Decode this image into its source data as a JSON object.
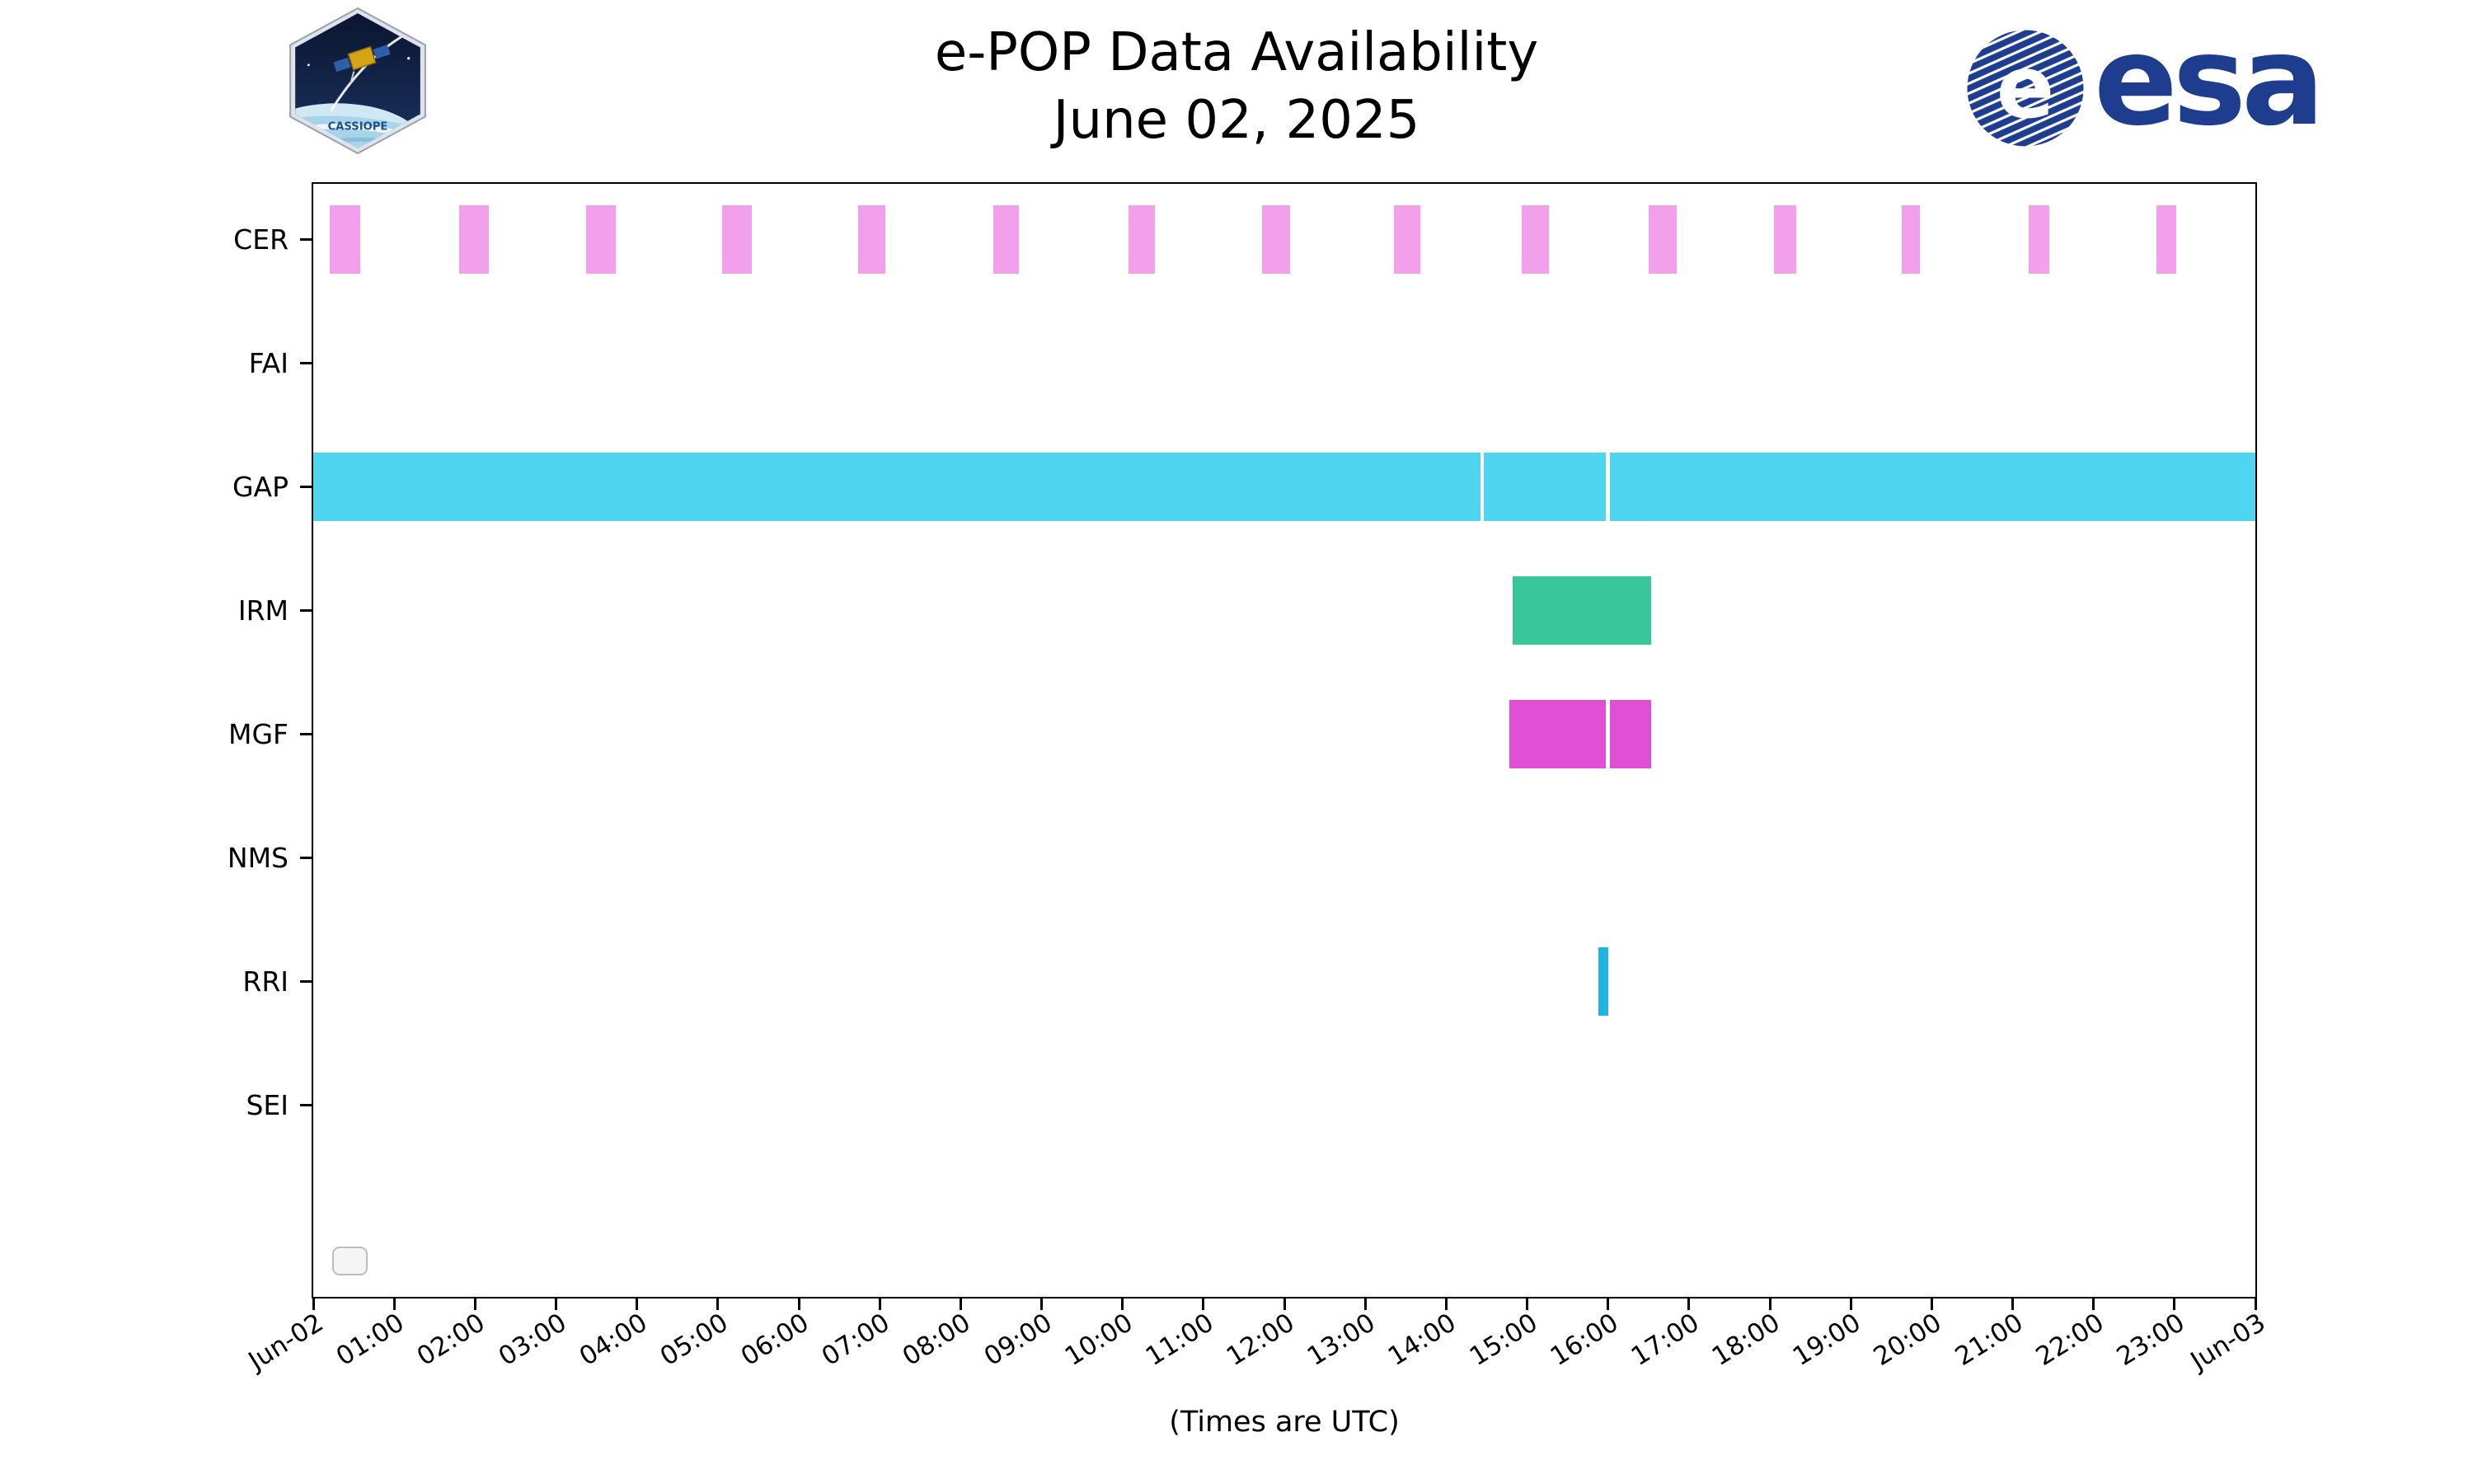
{
  "header": {
    "title_line1": "e-POP Data Availability",
    "title_line2": "June 02, 2025"
  },
  "logos": {
    "cassiope_text": "CASSIOPE",
    "esa_text": "esa",
    "esa_blue": "#1e3d8f",
    "cassiope_navy": "#0d1c3d"
  },
  "chart_data": {
    "type": "bar",
    "subtype": "availability-timeline",
    "title": "e-POP Data Availability June 02, 2025",
    "xlabel": "(Times are UTC)",
    "x_range_hours": [
      0,
      24
    ],
    "x_tick_interval_hours": 1,
    "x_tick_labels": [
      "Jun-02",
      "01:00",
      "02:00",
      "03:00",
      "04:00",
      "05:00",
      "06:00",
      "07:00",
      "08:00",
      "09:00",
      "10:00",
      "11:00",
      "12:00",
      "13:00",
      "14:00",
      "15:00",
      "16:00",
      "17:00",
      "18:00",
      "19:00",
      "20:00",
      "21:00",
      "22:00",
      "23:00",
      "Jun-03"
    ],
    "rows": [
      "CER",
      "FAI",
      "GAP",
      "IRM",
      "MGF",
      "NMS",
      "RRI",
      "SEI"
    ],
    "row_slots": 9,
    "grid": false,
    "legend_box": {
      "visible": true,
      "empty": true,
      "position": "lower-left"
    },
    "series": [
      {
        "name": "CER",
        "color": "#f3a0ec",
        "intervals_hours": [
          [
            0.2,
            0.58
          ],
          [
            1.8,
            2.17
          ],
          [
            3.37,
            3.74
          ],
          [
            5.05,
            5.42
          ],
          [
            6.73,
            7.07
          ],
          [
            8.4,
            8.72
          ],
          [
            10.07,
            10.4
          ],
          [
            11.73,
            12.07
          ],
          [
            13.35,
            13.68
          ],
          [
            14.93,
            15.27
          ],
          [
            16.5,
            16.85
          ],
          [
            18.05,
            18.33
          ],
          [
            19.63,
            19.85
          ],
          [
            21.2,
            21.45
          ],
          [
            22.78,
            23.02
          ]
        ]
      },
      {
        "name": "FAI",
        "color": "#f3a0ec",
        "intervals_hours": []
      },
      {
        "name": "GAP",
        "color": "#4fd5f0",
        "intervals_hours": [
          [
            0.0,
            14.42
          ],
          [
            14.47,
            15.97
          ],
          [
            16.02,
            24.0
          ]
        ]
      },
      {
        "name": "IRM",
        "color": "#38c79b",
        "intervals_hours": [
          [
            14.82,
            16.53
          ]
        ]
      },
      {
        "name": "MGF",
        "color": "#e14fd6",
        "intervals_hours": [
          [
            14.78,
            15.97
          ],
          [
            16.02,
            16.53
          ]
        ]
      },
      {
        "name": "NMS",
        "color": "#888888",
        "intervals_hours": []
      },
      {
        "name": "RRI",
        "color": "#1fb4e6",
        "intervals_hours": [
          [
            15.88,
            16.0
          ]
        ]
      },
      {
        "name": "SEI",
        "color": "#888888",
        "intervals_hours": []
      }
    ]
  }
}
